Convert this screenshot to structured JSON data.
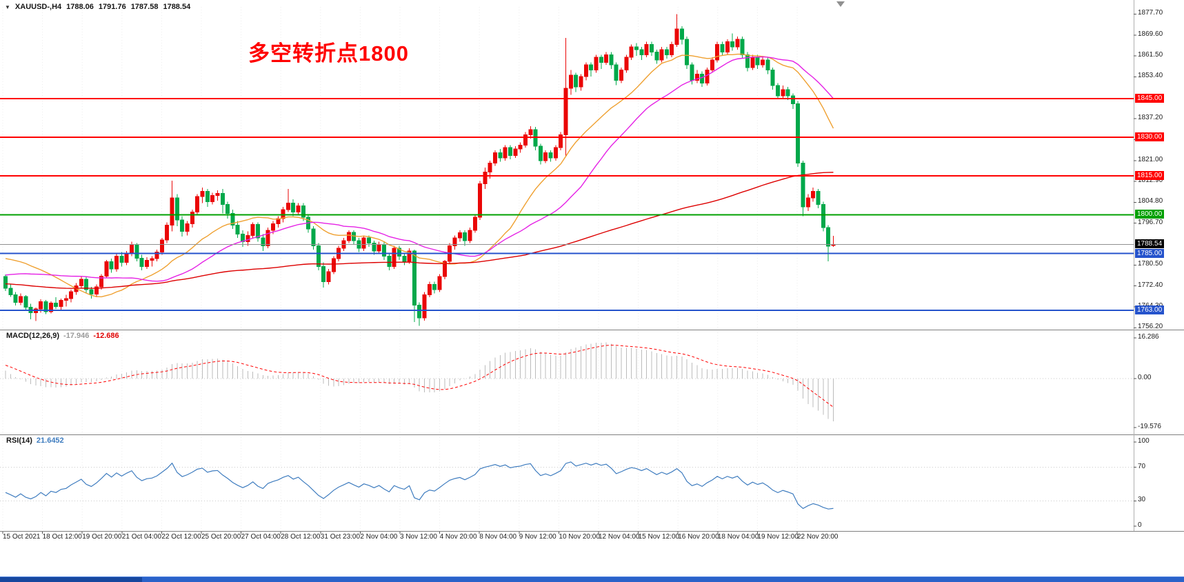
{
  "symbol_bar": {
    "icon": "▼",
    "symbol": "XAUUSD-,H4",
    "open": "1788.06",
    "high": "1791.76",
    "low": "1787.58",
    "close": "1788.54"
  },
  "annotation": {
    "text": "多空转折点1800",
    "color": "#FF0000"
  },
  "panels": {
    "macd": {
      "label": "MACD(12,26,9)",
      "value": "-17.946",
      "signal_value": "-12.686"
    },
    "rsi": {
      "label": "RSI(14)",
      "value": "21.6452"
    }
  },
  "taskbar": {
    "color": "#2A62C9",
    "active_color": "#17479E"
  },
  "chart_data": {
    "type": "candlestick",
    "symbol": "XAUUSD-",
    "timeframe": "H4",
    "title_annotation": "多空转折点1800",
    "price_range": [
      1757.1,
      1880.5
    ],
    "colors": {
      "up": "#EA0606",
      "down": "#00A84A",
      "macd_hist": "#BBBBBB",
      "macd_signal": "#FF0000",
      "rsi": "#3E7CBF",
      "grid": "#ECECEC"
    },
    "price_labels": [
      {
        "text": "1877.70",
        "price": 1877.7
      },
      {
        "text": "1869.60",
        "price": 1869.6
      },
      {
        "text": "1861.50",
        "price": 1861.5
      },
      {
        "text": "1853.40",
        "price": 1853.4
      },
      {
        "text": "1837.20",
        "price": 1837.2
      },
      {
        "text": "1829.10",
        "price": 1829.1
      },
      {
        "text": "1821.00",
        "price": 1821.0
      },
      {
        "text": "1812.90",
        "price": 1812.9
      },
      {
        "text": "1804.80",
        "price": 1804.8
      },
      {
        "text": "1796.70",
        "price": 1796.7
      },
      {
        "text": "1780.50",
        "price": 1780.5
      },
      {
        "text": "1772.40",
        "price": 1772.4
      },
      {
        "text": "1764.30",
        "price": 1764.3
      },
      {
        "text": "1756.20",
        "price": 1756.2
      }
    ],
    "horizontal_lines": [
      {
        "tag": "1845.00",
        "price": 1845.0,
        "color": "#FF0000",
        "width": 2
      },
      {
        "tag": "1830.00",
        "price": 1830.0,
        "color": "#FF0000",
        "width": 2
      },
      {
        "tag": "1815.00",
        "price": 1815.0,
        "color": "#FF0000",
        "width": 2
      },
      {
        "tag": "1800.00",
        "price": 1800.0,
        "color": "#00A000",
        "width": 2
      },
      {
        "tag": "1788.54",
        "price": 1788.54,
        "color": "#909090",
        "width": 1,
        "tag_bg": "#000000"
      },
      {
        "tag": "1785.00",
        "price": 1785.0,
        "color": "#2553CC",
        "width": 2
      },
      {
        "tag": "1763.00",
        "price": 1763.0,
        "color": "#2553CC",
        "width": 2
      }
    ],
    "time_labels": [
      "15 Oct 2021",
      "18 Oct 12:00",
      "19 Oct 20:00",
      "21 Oct 04:00",
      "22 Oct 12:00",
      "25 Oct 20:00",
      "27 Oct 04:00",
      "28 Oct 12:00",
      "31 Oct 23:00",
      "2 Nov 04:00",
      "3 Nov 12:00",
      "4 Nov 20:00",
      "8 Nov 04:00",
      "9 Nov 12:00",
      "10 Nov 20:00",
      "12 Nov 04:00",
      "15 Nov 12:00",
      "16 Nov 20:00",
      "18 Nov 04:00",
      "19 Nov 12:00",
      "22 Nov 20:00"
    ],
    "moving_averages": [
      {
        "period": 20,
        "color": "#EFA030"
      },
      {
        "period": 34,
        "color": "#E522E5"
      },
      {
        "period": 144,
        "color": "#DD0000"
      }
    ],
    "macd": {
      "params": [
        12,
        26,
        9
      ],
      "scale": [
        16.286,
        -19.576
      ],
      "axis_labels": [
        {
          "text": "16.286",
          "value": 16.286
        },
        {
          "text": "0.00",
          "value": 0
        },
        {
          "text": "-19.576",
          "value": -19.576
        }
      ]
    },
    "rsi": {
      "period": 14,
      "levels": [
        70,
        30
      ],
      "axis_labels": [
        {
          "text": "100",
          "value": 100
        },
        {
          "text": "70",
          "value": 70
        },
        {
          "text": "30",
          "value": 30
        },
        {
          "text": "0",
          "value": 0
        }
      ]
    },
    "indicator_warmup_closes": [
      1755,
      1753,
      1756,
      1758,
      1757,
      1760,
      1759,
      1762,
      1761,
      1764,
      1763,
      1766,
      1765,
      1768,
      1767,
      1770,
      1769,
      1772,
      1771,
      1774,
      1773,
      1776,
      1775,
      1778,
      1777,
      1780,
      1779,
      1782,
      1781,
      1784,
      1786,
      1788,
      1790,
      1792,
      1794,
      1792,
      1789,
      1786,
      1782,
      1778
    ],
    "candles": [
      [
        1776.0,
        1776.8,
        1770.5,
        1771.5
      ],
      [
        1771.5,
        1773.0,
        1768.2,
        1769.0
      ],
      [
        1769.0,
        1770.1,
        1764.8,
        1766.0
      ],
      [
        1766.0,
        1769.5,
        1765.0,
        1768.3
      ],
      [
        1768.3,
        1768.8,
        1763.0,
        1764.2
      ],
      [
        1764.2,
        1765.5,
        1759.5,
        1762.0
      ],
      [
        1762.0,
        1764.0,
        1758.9,
        1763.5
      ],
      [
        1763.5,
        1767.2,
        1762.0,
        1766.3
      ],
      [
        1766.3,
        1767.0,
        1761.5,
        1762.5
      ],
      [
        1762.5,
        1766.5,
        1761.8,
        1765.8
      ],
      [
        1765.8,
        1768.0,
        1763.5,
        1764.5
      ],
      [
        1764.5,
        1767.5,
        1763.0,
        1766.8
      ],
      [
        1766.8,
        1769.0,
        1764.5,
        1767.5
      ],
      [
        1767.5,
        1771.0,
        1766.0,
        1770.2
      ],
      [
        1770.2,
        1773.5,
        1769.0,
        1772.5
      ],
      [
        1772.5,
        1776.0,
        1771.5,
        1775.0
      ],
      [
        1775.0,
        1776.2,
        1769.8,
        1771.0
      ],
      [
        1771.0,
        1772.0,
        1767.5,
        1769.2
      ],
      [
        1769.2,
        1773.0,
        1768.0,
        1772.0
      ],
      [
        1772.0,
        1777.0,
        1771.0,
        1776.2
      ],
      [
        1776.2,
        1782.5,
        1775.5,
        1781.8
      ],
      [
        1781.8,
        1783.0,
        1777.5,
        1779.0
      ],
      [
        1779.0,
        1785.0,
        1778.0,
        1784.0
      ],
      [
        1784.0,
        1785.5,
        1780.0,
        1781.5
      ],
      [
        1781.5,
        1786.0,
        1780.5,
        1785.2
      ],
      [
        1785.2,
        1789.5,
        1784.0,
        1788.5
      ],
      [
        1788.5,
        1789.0,
        1782.0,
        1783.2
      ],
      [
        1783.2,
        1784.5,
        1778.5,
        1780.0
      ],
      [
        1780.0,
        1783.5,
        1779.0,
        1782.3
      ],
      [
        1782.3,
        1784.0,
        1780.0,
        1783.0
      ],
      [
        1783.0,
        1786.5,
        1782.0,
        1785.5
      ],
      [
        1785.5,
        1791.0,
        1784.5,
        1790.2
      ],
      [
        1790.2,
        1797.0,
        1789.0,
        1796.0
      ],
      [
        1796.0,
        1813.2,
        1793.5,
        1806.5
      ],
      [
        1806.5,
        1808.0,
        1795.5,
        1798.0
      ],
      [
        1798.0,
        1799.5,
        1791.5,
        1793.5
      ],
      [
        1793.5,
        1797.5,
        1792.0,
        1796.5
      ],
      [
        1796.5,
        1802.0,
        1795.0,
        1801.0
      ],
      [
        1801.0,
        1808.0,
        1800.0,
        1807.0
      ],
      [
        1807.0,
        1810.5,
        1804.5,
        1809.0
      ],
      [
        1809.0,
        1810.0,
        1803.0,
        1805.0
      ],
      [
        1805.0,
        1808.5,
        1804.0,
        1807.5
      ],
      [
        1807.5,
        1809.5,
        1805.5,
        1808.2
      ],
      [
        1808.2,
        1810.0,
        1800.5,
        1804.0
      ],
      [
        1804.0,
        1805.0,
        1798.5,
        1800.5
      ],
      [
        1800.5,
        1802.0,
        1794.5,
        1796.0
      ],
      [
        1796.0,
        1797.5,
        1791.0,
        1792.5
      ],
      [
        1792.5,
        1794.0,
        1787.5,
        1789.5
      ],
      [
        1789.5,
        1793.5,
        1788.0,
        1792.0
      ],
      [
        1792.0,
        1797.0,
        1791.0,
        1796.2
      ],
      [
        1796.2,
        1797.0,
        1789.5,
        1791.0
      ],
      [
        1791.0,
        1792.5,
        1786.0,
        1788.0
      ],
      [
        1788.0,
        1795.0,
        1787.0,
        1794.0
      ],
      [
        1794.0,
        1797.5,
        1792.5,
        1796.5
      ],
      [
        1796.5,
        1799.5,
        1795.0,
        1798.5
      ],
      [
        1798.5,
        1803.0,
        1797.0,
        1802.0
      ],
      [
        1802.0,
        1810.0,
        1801.0,
        1804.5
      ],
      [
        1804.5,
        1806.0,
        1799.5,
        1801.0
      ],
      [
        1801.0,
        1804.5,
        1800.0,
        1803.5
      ],
      [
        1803.5,
        1804.5,
        1797.5,
        1799.0
      ],
      [
        1799.0,
        1800.0,
        1793.0,
        1794.5
      ],
      [
        1794.5,
        1795.5,
        1786.5,
        1788.0
      ],
      [
        1788.0,
        1789.0,
        1778.5,
        1780.0
      ],
      [
        1780.0,
        1781.5,
        1771.8,
        1774.0
      ],
      [
        1774.0,
        1779.0,
        1773.0,
        1778.0
      ],
      [
        1778.0,
        1784.0,
        1777.0,
        1783.0
      ],
      [
        1783.0,
        1788.0,
        1782.0,
        1787.0
      ],
      [
        1787.0,
        1791.0,
        1786.0,
        1790.0
      ],
      [
        1790.0,
        1794.0,
        1789.0,
        1793.2
      ],
      [
        1793.2,
        1794.0,
        1788.5,
        1790.0
      ],
      [
        1790.0,
        1791.0,
        1785.5,
        1787.0
      ],
      [
        1787.0,
        1792.0,
        1786.0,
        1791.0
      ],
      [
        1791.0,
        1792.0,
        1787.5,
        1789.0
      ],
      [
        1789.0,
        1790.0,
        1784.5,
        1786.0
      ],
      [
        1786.0,
        1789.5,
        1785.0,
        1788.5
      ],
      [
        1788.5,
        1789.5,
        1782.5,
        1784.0
      ],
      [
        1784.0,
        1785.0,
        1778.5,
        1780.0
      ],
      [
        1780.0,
        1788.0,
        1779.0,
        1787.0
      ],
      [
        1787.0,
        1788.0,
        1782.5,
        1784.0
      ],
      [
        1784.0,
        1785.0,
        1780.5,
        1782.0
      ],
      [
        1782.0,
        1787.0,
        1781.0,
        1786.0
      ],
      [
        1786.0,
        1786.5,
        1758.5,
        1765.0
      ],
      [
        1765.0,
        1766.0,
        1757.0,
        1760.0
      ],
      [
        1760.0,
        1770.0,
        1759.0,
        1769.0
      ],
      [
        1769.0,
        1774.0,
        1768.0,
        1773.0
      ],
      [
        1773.0,
        1774.0,
        1769.5,
        1771.0
      ],
      [
        1771.0,
        1777.0,
        1770.0,
        1776.0
      ],
      [
        1776.0,
        1782.5,
        1775.0,
        1782.0
      ],
      [
        1782.0,
        1789.0,
        1781.0,
        1788.0
      ],
      [
        1788.0,
        1792.0,
        1786.5,
        1791.0
      ],
      [
        1791.0,
        1794.0,
        1789.5,
        1793.0
      ],
      [
        1793.0,
        1794.0,
        1788.0,
        1790.0
      ],
      [
        1790.0,
        1795.0,
        1789.0,
        1794.0
      ],
      [
        1794.0,
        1800.0,
        1793.0,
        1799.0
      ],
      [
        1799.0,
        1813.0,
        1798.0,
        1812.0
      ],
      [
        1812.0,
        1818.3,
        1810.0,
        1816.5
      ],
      [
        1816.5,
        1821.0,
        1814.0,
        1820.0
      ],
      [
        1820.0,
        1825.0,
        1819.0,
        1824.0
      ],
      [
        1824.0,
        1825.5,
        1820.5,
        1822.0
      ],
      [
        1822.0,
        1827.0,
        1821.0,
        1826.0
      ],
      [
        1826.0,
        1827.0,
        1821.5,
        1823.0
      ],
      [
        1823.0,
        1826.5,
        1822.0,
        1825.5
      ],
      [
        1825.5,
        1828.0,
        1824.0,
        1827.0
      ],
      [
        1827.0,
        1832.0,
        1826.0,
        1831.0
      ],
      [
        1831.0,
        1834.3,
        1829.5,
        1833.0
      ],
      [
        1833.0,
        1834.0,
        1825.0,
        1826.5
      ],
      [
        1826.5,
        1827.5,
        1819.5,
        1821.0
      ],
      [
        1821.0,
        1825.0,
        1820.0,
        1824.0
      ],
      [
        1824.0,
        1825.0,
        1820.5,
        1822.0
      ],
      [
        1822.0,
        1827.0,
        1821.0,
        1826.0
      ],
      [
        1826.0,
        1832.0,
        1825.0,
        1831.0
      ],
      [
        1831.0,
        1868.5,
        1822.5,
        1849.0
      ],
      [
        1849.0,
        1856.0,
        1846.5,
        1854.0
      ],
      [
        1854.0,
        1855.0,
        1847.5,
        1849.5
      ],
      [
        1849.5,
        1854.5,
        1848.0,
        1853.5
      ],
      [
        1853.5,
        1859.0,
        1852.0,
        1858.0
      ],
      [
        1858.0,
        1859.0,
        1853.5,
        1856.0
      ],
      [
        1856.0,
        1862.0,
        1855.0,
        1861.0
      ],
      [
        1861.0,
        1862.0,
        1856.5,
        1859.0
      ],
      [
        1859.0,
        1863.0,
        1858.0,
        1862.0
      ],
      [
        1862.0,
        1863.0,
        1856.5,
        1858.0
      ],
      [
        1858.0,
        1859.0,
        1850.2,
        1852.0
      ],
      [
        1852.0,
        1857.0,
        1851.0,
        1856.0
      ],
      [
        1856.0,
        1862.0,
        1855.0,
        1861.0
      ],
      [
        1861.0,
        1866.0,
        1860.0,
        1865.0
      ],
      [
        1865.0,
        1866.5,
        1861.5,
        1864.0
      ],
      [
        1864.0,
        1865.0,
        1860.0,
        1862.0
      ],
      [
        1862.0,
        1867.0,
        1861.0,
        1866.0
      ],
      [
        1866.0,
        1867.0,
        1861.5,
        1863.0
      ],
      [
        1863.0,
        1864.0,
        1858.5,
        1860.0
      ],
      [
        1860.0,
        1865.0,
        1859.0,
        1864.0
      ],
      [
        1864.0,
        1865.0,
        1860.5,
        1862.0
      ],
      [
        1862.0,
        1867.0,
        1861.0,
        1866.0
      ],
      [
        1866.0,
        1877.7,
        1865.0,
        1872.0
      ],
      [
        1872.0,
        1873.0,
        1866.0,
        1868.0
      ],
      [
        1868.0,
        1869.0,
        1856.5,
        1858.0
      ],
      [
        1858.0,
        1859.0,
        1850.5,
        1852.0
      ],
      [
        1852.0,
        1856.0,
        1851.0,
        1854.5
      ],
      [
        1854.5,
        1855.5,
        1849.5,
        1851.0
      ],
      [
        1851.0,
        1857.0,
        1850.0,
        1856.0
      ],
      [
        1856.0,
        1861.0,
        1855.0,
        1860.0
      ],
      [
        1860.0,
        1867.0,
        1859.0,
        1866.0
      ],
      [
        1866.0,
        1867.0,
        1861.5,
        1863.0
      ],
      [
        1863.0,
        1868.0,
        1862.0,
        1867.0
      ],
      [
        1867.0,
        1870.2,
        1863.5,
        1865.0
      ],
      [
        1865.0,
        1869.0,
        1864.0,
        1868.0
      ],
      [
        1868.0,
        1869.0,
        1860.5,
        1862.0
      ],
      [
        1862.0,
        1863.0,
        1855.5,
        1857.0
      ],
      [
        1857.0,
        1862.0,
        1856.0,
        1861.0
      ],
      [
        1861.0,
        1862.0,
        1856.5,
        1858.0
      ],
      [
        1858.0,
        1861.5,
        1857.0,
        1860.0
      ],
      [
        1860.0,
        1861.0,
        1854.5,
        1856.0
      ],
      [
        1856.0,
        1857.0,
        1848.5,
        1850.0
      ],
      [
        1850.0,
        1851.0,
        1844.8,
        1846.0
      ],
      [
        1846.0,
        1850.0,
        1845.0,
        1848.5
      ],
      [
        1848.5,
        1849.5,
        1844.5,
        1846.0
      ],
      [
        1846.0,
        1847.0,
        1841.0,
        1843.0
      ],
      [
        1843.0,
        1844.0,
        1818.5,
        1820.0
      ],
      [
        1820.0,
        1821.0,
        1799.5,
        1803.0
      ],
      [
        1803.0,
        1808.0,
        1801.5,
        1806.5
      ],
      [
        1806.5,
        1810.5,
        1805.0,
        1809.0
      ],
      [
        1809.0,
        1810.0,
        1802.5,
        1804.0
      ],
      [
        1804.0,
        1805.0,
        1793.5,
        1795.0
      ],
      [
        1795.0,
        1796.0,
        1781.9,
        1787.8
      ],
      [
        1788.06,
        1791.76,
        1787.58,
        1788.54
      ]
    ]
  }
}
